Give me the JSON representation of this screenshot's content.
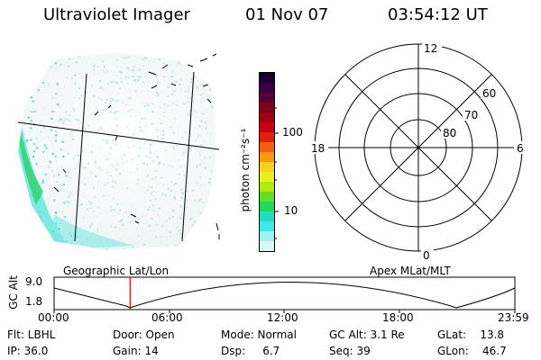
{
  "header": {
    "instrument": "Ultraviolet Imager",
    "date": "01 Nov 07",
    "time": "03:54:12 UT"
  },
  "colorbar": {
    "unit_label": "photon cm⁻²s⁻¹",
    "ticks": [
      "100",
      "10"
    ],
    "colors": [
      "#1a0030",
      "#3a0040",
      "#5a0038",
      "#800020",
      "#a00010",
      "#c80010",
      "#e02010",
      "#f06010",
      "#f59a10",
      "#f8d020",
      "#e8ef20",
      "#b0ea10",
      "#60e020",
      "#20d860",
      "#20dcc0",
      "#40e8e8",
      "#a0f0f0",
      "#d8f8f8"
    ]
  },
  "polar_plot": {
    "mlt_labels": {
      "top": "12",
      "left": "18",
      "right": "6",
      "bottom": "0"
    },
    "mlat_labels": [
      "60",
      "70",
      "80"
    ]
  },
  "timeline": {
    "left_label": "Geographic Lat/Lon",
    "right_label": "Apex MLat/MLT",
    "yaxis_title": "GC Alt",
    "ytick_top": "9.0",
    "ytick_bottom": "1.8",
    "xticks": [
      "00:00",
      "06:00",
      "12:00",
      "18:00",
      "23:59"
    ],
    "current_time_fraction": 0.165
  },
  "info": {
    "filter": "Flt: LBHL",
    "ip": "IP: 36.0",
    "door": "Door: Open",
    "gain": "Gain: 14",
    "mode": "Mode: Normal",
    "dsp": "Dsp:     6.7",
    "gc_alt": "GC Alt: 3.1 Re",
    "seq": "Seq: 39",
    "glat": "GLat:    13.8",
    "glon": "GLon:    46.7"
  }
}
